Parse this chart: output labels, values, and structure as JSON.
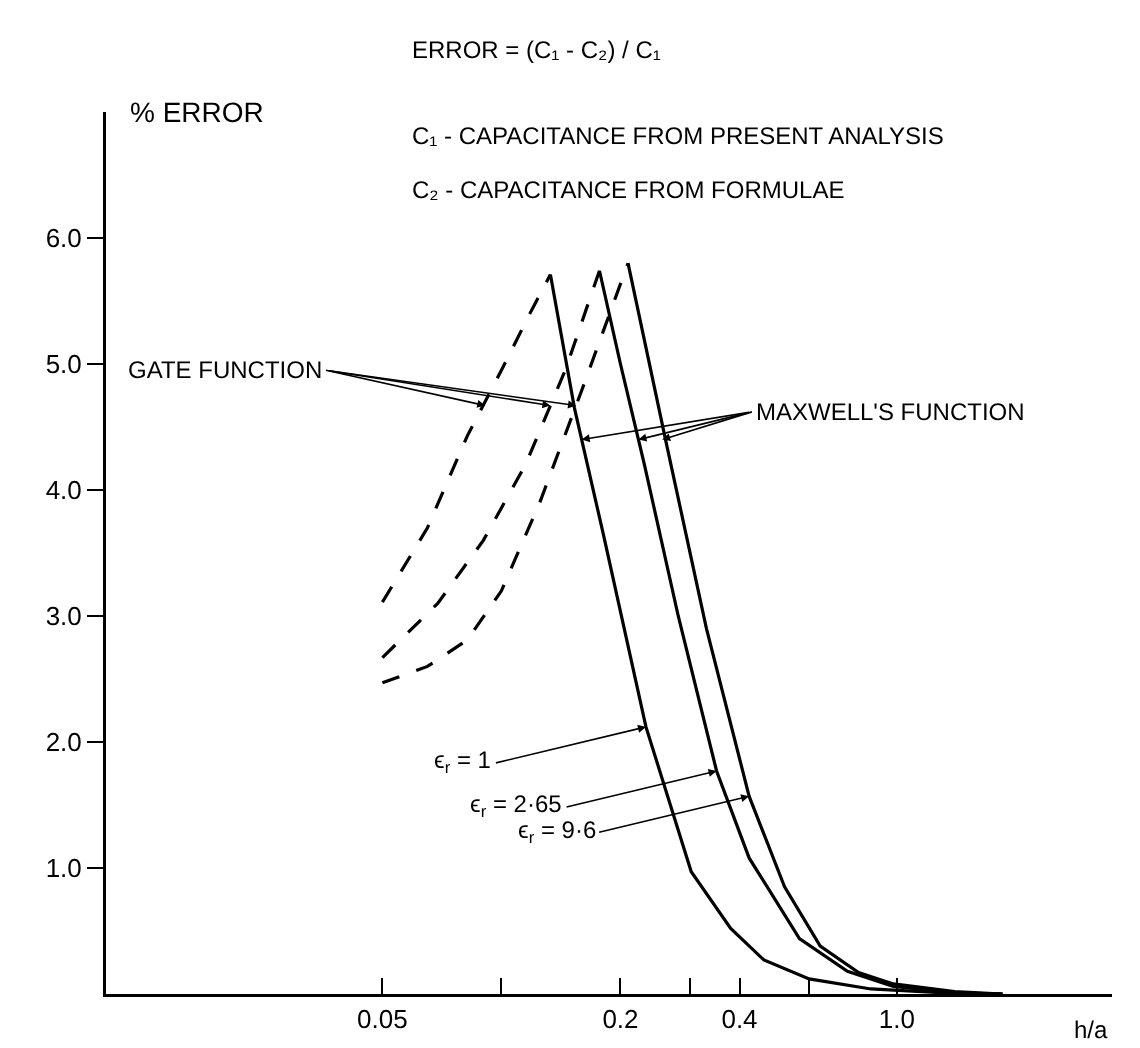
{
  "chart_data": {
    "type": "line",
    "log": "x",
    "xlabel": "h/a",
    "ylabel": "% ERROR",
    "grid": false,
    "marker": "none",
    "xlim": [
      0.01,
      3.5
    ],
    "ylim": [
      0,
      7
    ],
    "xticks": [
      0.05,
      {
        "value": 0.1,
        "label": null
      },
      0.2,
      {
        "value": 0.3,
        "label": null
      },
      0.4,
      {
        "value": 0.6,
        "label": null
      },
      {
        "value": 1,
        "label": "1.0"
      }
    ],
    "yticks": [
      {
        "value": 1,
        "label": "1.0"
      },
      {
        "value": 2,
        "label": "2.0"
      },
      {
        "value": 3,
        "label": "3.0"
      },
      {
        "value": 4,
        "label": "4.0"
      },
      {
        "value": 5,
        "label": "5.0"
      },
      {
        "value": 6,
        "label": "6.0"
      }
    ],
    "series": [
      {
        "color": "#000000",
        "line_style": "dashed",
        "x": [
          0.05,
          0.065,
          0.082,
          0.1,
          0.118,
          0.133
        ],
        "values": [
          3.11,
          3.7,
          4.43,
          4.95,
          5.4,
          5.71
        ]
      },
      {
        "color": "#000000",
        "line_style": "solid",
        "x": [
          0.133,
          0.153,
          0.181,
          0.232,
          0.302,
          0.38,
          0.461,
          0.6,
          0.86,
          1.3,
          1.85
        ],
        "values": [
          5.71,
          4.65,
          3.65,
          2.12,
          0.97,
          0.52,
          0.27,
          0.12,
          0.04,
          0.01,
          0
        ]
      },
      {
        "color": "#000000",
        "line_style": "dashed",
        "x": [
          0.05,
          0.069,
          0.09,
          0.115,
          0.145,
          0.177
        ],
        "values": [
          2.67,
          3.1,
          3.6,
          4.2,
          4.95,
          5.74
        ]
      },
      {
        "color": "#000000",
        "line_style": "solid",
        "x": [
          0.177,
          0.2,
          0.23,
          0.28,
          0.35,
          0.423,
          0.567,
          0.75,
          0.98,
          1.4,
          1.85
        ],
        "values": [
          5.74,
          5.0,
          4.2,
          3.0,
          1.77,
          1.08,
          0.44,
          0.18,
          0.06,
          0.01,
          0
        ]
      },
      {
        "color": "#000000",
        "line_style": "dashed",
        "x": [
          0.05,
          0.065,
          0.082,
          0.1,
          0.125,
          0.16,
          0.209
        ],
        "values": [
          2.47,
          2.6,
          2.81,
          3.2,
          3.9,
          4.8,
          5.8
        ]
      },
      {
        "color": "#000000",
        "line_style": "solid",
        "x": [
          0.209,
          0.26,
          0.33,
          0.423,
          0.52,
          0.64,
          0.8,
          0.98,
          1.4,
          1.85
        ],
        "values": [
          5.8,
          4.4,
          2.9,
          1.57,
          0.85,
          0.38,
          0.17,
          0.08,
          0.02,
          0
        ]
      }
    ],
    "annotations": [
      "ERROR = (C₁ - C₂) / C₁",
      "C₁ - CAPACITANCE FROM PRESENT ANALYSIS",
      "C₂ - CAPACITANCE FROM FORMULAE",
      {
        "text": "GATE FUNCTION",
        "x": 0.091,
        "y": 4.67
      },
      {
        "text": "MAXWELL'S FUNCTION",
        "x": 0.255,
        "y": 4.4
      },
      {
        "text": "ϵ$_{r}$ = 1",
        "x": 0.232,
        "y": 2.12
      },
      {
        "text": "ϵ$_{r}$ = 2·65",
        "x": 0.35,
        "y": 1.77
      },
      {
        "text": "ϵ$_{r}$ = 9·6",
        "x": 0.423,
        "y": 1.57
      }
    ]
  }
}
